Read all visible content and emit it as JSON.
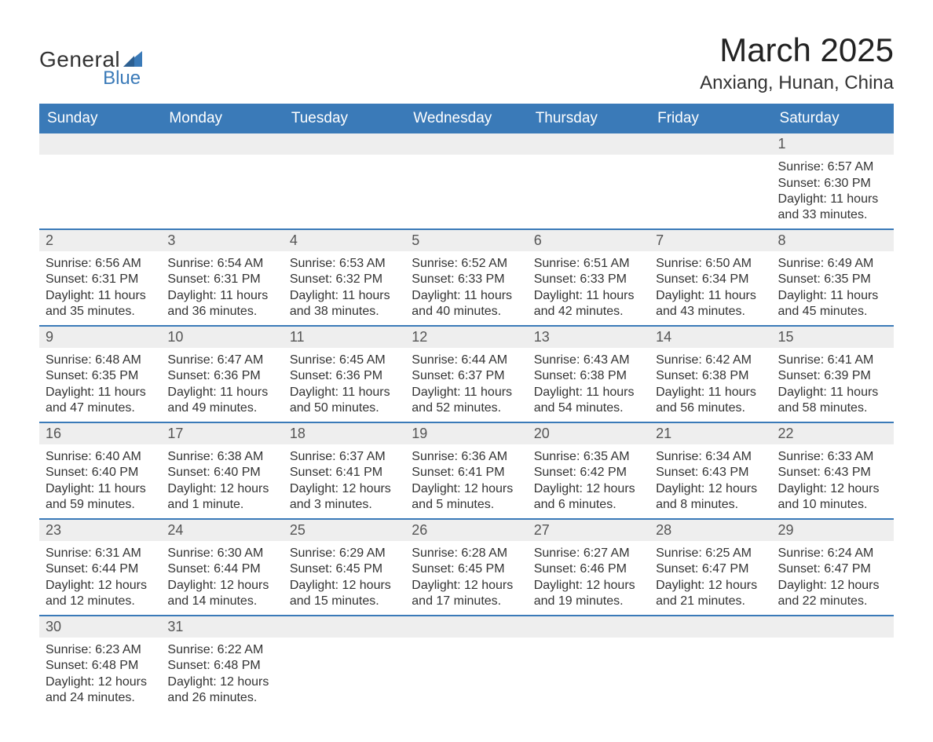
{
  "logo": {
    "line1": "General",
    "line2": "Blue",
    "accent_color": "#3a7ab8"
  },
  "title": "March 2025",
  "subtitle": "Anxiang, Hunan, China",
  "header_bg": "#3a7ab8",
  "header_fg": "#ffffff",
  "daynum_bg": "#eeeeee",
  "border_color": "#3a7ab8",
  "weekdays": [
    "Sunday",
    "Monday",
    "Tuesday",
    "Wednesday",
    "Thursday",
    "Friday",
    "Saturday"
  ],
  "weeks": [
    [
      null,
      null,
      null,
      null,
      null,
      null,
      {
        "d": "1",
        "sunrise": "Sunrise: 6:57 AM",
        "sunset": "Sunset: 6:30 PM",
        "daylight": "Daylight: 11 hours and 33 minutes."
      }
    ],
    [
      {
        "d": "2",
        "sunrise": "Sunrise: 6:56 AM",
        "sunset": "Sunset: 6:31 PM",
        "daylight": "Daylight: 11 hours and 35 minutes."
      },
      {
        "d": "3",
        "sunrise": "Sunrise: 6:54 AM",
        "sunset": "Sunset: 6:31 PM",
        "daylight": "Daylight: 11 hours and 36 minutes."
      },
      {
        "d": "4",
        "sunrise": "Sunrise: 6:53 AM",
        "sunset": "Sunset: 6:32 PM",
        "daylight": "Daylight: 11 hours and 38 minutes."
      },
      {
        "d": "5",
        "sunrise": "Sunrise: 6:52 AM",
        "sunset": "Sunset: 6:33 PM",
        "daylight": "Daylight: 11 hours and 40 minutes."
      },
      {
        "d": "6",
        "sunrise": "Sunrise: 6:51 AM",
        "sunset": "Sunset: 6:33 PM",
        "daylight": "Daylight: 11 hours and 42 minutes."
      },
      {
        "d": "7",
        "sunrise": "Sunrise: 6:50 AM",
        "sunset": "Sunset: 6:34 PM",
        "daylight": "Daylight: 11 hours and 43 minutes."
      },
      {
        "d": "8",
        "sunrise": "Sunrise: 6:49 AM",
        "sunset": "Sunset: 6:35 PM",
        "daylight": "Daylight: 11 hours and 45 minutes."
      }
    ],
    [
      {
        "d": "9",
        "sunrise": "Sunrise: 6:48 AM",
        "sunset": "Sunset: 6:35 PM",
        "daylight": "Daylight: 11 hours and 47 minutes."
      },
      {
        "d": "10",
        "sunrise": "Sunrise: 6:47 AM",
        "sunset": "Sunset: 6:36 PM",
        "daylight": "Daylight: 11 hours and 49 minutes."
      },
      {
        "d": "11",
        "sunrise": "Sunrise: 6:45 AM",
        "sunset": "Sunset: 6:36 PM",
        "daylight": "Daylight: 11 hours and 50 minutes."
      },
      {
        "d": "12",
        "sunrise": "Sunrise: 6:44 AM",
        "sunset": "Sunset: 6:37 PM",
        "daylight": "Daylight: 11 hours and 52 minutes."
      },
      {
        "d": "13",
        "sunrise": "Sunrise: 6:43 AM",
        "sunset": "Sunset: 6:38 PM",
        "daylight": "Daylight: 11 hours and 54 minutes."
      },
      {
        "d": "14",
        "sunrise": "Sunrise: 6:42 AM",
        "sunset": "Sunset: 6:38 PM",
        "daylight": "Daylight: 11 hours and 56 minutes."
      },
      {
        "d": "15",
        "sunrise": "Sunrise: 6:41 AM",
        "sunset": "Sunset: 6:39 PM",
        "daylight": "Daylight: 11 hours and 58 minutes."
      }
    ],
    [
      {
        "d": "16",
        "sunrise": "Sunrise: 6:40 AM",
        "sunset": "Sunset: 6:40 PM",
        "daylight": "Daylight: 11 hours and 59 minutes."
      },
      {
        "d": "17",
        "sunrise": "Sunrise: 6:38 AM",
        "sunset": "Sunset: 6:40 PM",
        "daylight": "Daylight: 12 hours and 1 minute."
      },
      {
        "d": "18",
        "sunrise": "Sunrise: 6:37 AM",
        "sunset": "Sunset: 6:41 PM",
        "daylight": "Daylight: 12 hours and 3 minutes."
      },
      {
        "d": "19",
        "sunrise": "Sunrise: 6:36 AM",
        "sunset": "Sunset: 6:41 PM",
        "daylight": "Daylight: 12 hours and 5 minutes."
      },
      {
        "d": "20",
        "sunrise": "Sunrise: 6:35 AM",
        "sunset": "Sunset: 6:42 PM",
        "daylight": "Daylight: 12 hours and 6 minutes."
      },
      {
        "d": "21",
        "sunrise": "Sunrise: 6:34 AM",
        "sunset": "Sunset: 6:43 PM",
        "daylight": "Daylight: 12 hours and 8 minutes."
      },
      {
        "d": "22",
        "sunrise": "Sunrise: 6:33 AM",
        "sunset": "Sunset: 6:43 PM",
        "daylight": "Daylight: 12 hours and 10 minutes."
      }
    ],
    [
      {
        "d": "23",
        "sunrise": "Sunrise: 6:31 AM",
        "sunset": "Sunset: 6:44 PM",
        "daylight": "Daylight: 12 hours and 12 minutes."
      },
      {
        "d": "24",
        "sunrise": "Sunrise: 6:30 AM",
        "sunset": "Sunset: 6:44 PM",
        "daylight": "Daylight: 12 hours and 14 minutes."
      },
      {
        "d": "25",
        "sunrise": "Sunrise: 6:29 AM",
        "sunset": "Sunset: 6:45 PM",
        "daylight": "Daylight: 12 hours and 15 minutes."
      },
      {
        "d": "26",
        "sunrise": "Sunrise: 6:28 AM",
        "sunset": "Sunset: 6:45 PM",
        "daylight": "Daylight: 12 hours and 17 minutes."
      },
      {
        "d": "27",
        "sunrise": "Sunrise: 6:27 AM",
        "sunset": "Sunset: 6:46 PM",
        "daylight": "Daylight: 12 hours and 19 minutes."
      },
      {
        "d": "28",
        "sunrise": "Sunrise: 6:25 AM",
        "sunset": "Sunset: 6:47 PM",
        "daylight": "Daylight: 12 hours and 21 minutes."
      },
      {
        "d": "29",
        "sunrise": "Sunrise: 6:24 AM",
        "sunset": "Sunset: 6:47 PM",
        "daylight": "Daylight: 12 hours and 22 minutes."
      }
    ],
    [
      {
        "d": "30",
        "sunrise": "Sunrise: 6:23 AM",
        "sunset": "Sunset: 6:48 PM",
        "daylight": "Daylight: 12 hours and 24 minutes."
      },
      {
        "d": "31",
        "sunrise": "Sunrise: 6:22 AM",
        "sunset": "Sunset: 6:48 PM",
        "daylight": "Daylight: 12 hours and 26 minutes."
      },
      null,
      null,
      null,
      null,
      null
    ]
  ]
}
